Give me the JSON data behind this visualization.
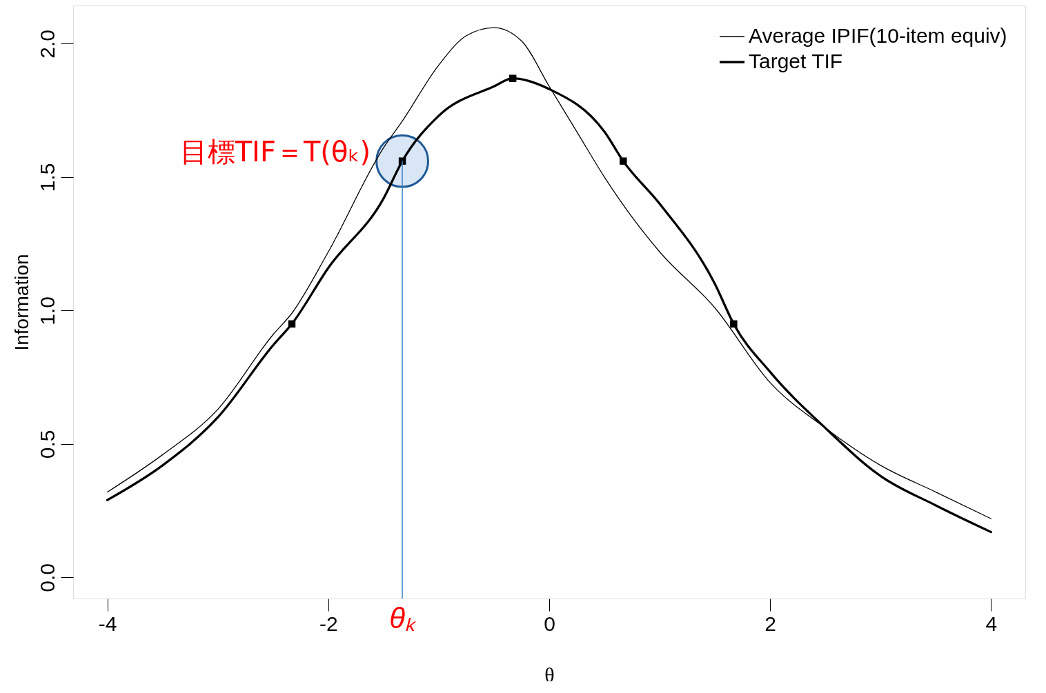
{
  "chart_data": {
    "type": "line",
    "xlabel": "θ",
    "ylabel": "Information",
    "xlim": [
      -4.31,
      4.31
    ],
    "ylim": [
      -0.079,
      2.143
    ],
    "xticks": [
      -4,
      -2,
      0,
      2,
      4
    ],
    "yticks": [
      {
        "value": 0,
        "label": "0.0"
      },
      {
        "value": 0.5,
        "label": "0.5"
      },
      {
        "value": 1,
        "label": "1.0"
      },
      {
        "value": 1.5,
        "label": "1.5"
      },
      {
        "value": 2,
        "label": "2.0"
      }
    ],
    "grid": false,
    "legend": "top right",
    "series": [
      {
        "name": "Average IPIF(10-item equiv)",
        "color": "#000000",
        "x": [
          -4,
          -3.5,
          -3,
          -2.5,
          -2.33,
          -2,
          -1.5,
          -1.33,
          -1,
          -0.75,
          -0.5,
          -0.25,
          0,
          0.25,
          0.5,
          0.75,
          1,
          1.5,
          2,
          2.5,
          3,
          3.5,
          4
        ],
        "values": [
          0.32,
          0.46,
          0.63,
          0.91,
          0.99,
          1.22,
          1.61,
          1.71,
          1.92,
          2.03,
          2.06,
          2.01,
          1.84,
          1.67,
          1.5,
          1.35,
          1.22,
          1.01,
          0.73,
          0.56,
          0.42,
          0.32,
          0.22
        ]
      },
      {
        "name": "Target TIF",
        "color": "#000000",
        "x": [
          -4,
          -3.5,
          -3,
          -2.5,
          -2.33,
          -2,
          -1.5,
          -1.33,
          -1,
          -0.5,
          -0.33,
          0,
          0.5,
          0.67,
          1,
          1.5,
          1.67,
          2,
          2.5,
          3,
          3.5,
          4
        ],
        "values": [
          0.29,
          0.42,
          0.6,
          0.87,
          0.95,
          1.16,
          1.42,
          1.56,
          1.73,
          1.84,
          1.87,
          1.83,
          1.67,
          1.56,
          1.4,
          1.1,
          0.95,
          0.77,
          0.56,
          0.38,
          0.27,
          0.17
        ]
      },
      {
        "type": "scatter",
        "color": "#000000",
        "x": [
          -2.33,
          -1.33,
          -0.33,
          0.67,
          1.67
        ],
        "values": [
          0.95,
          1.56,
          1.87,
          1.56,
          0.95
        ]
      }
    ],
    "ref_lines": [
      {
        "axis": "x",
        "value": -1.33,
        "color": "#3d85c6"
      }
    ],
    "annotations": [
      {
        "text": "目標TIF＝T(θₖ)",
        "x": -1.33,
        "y": 1.56
      },
      "θₖ"
    ]
  }
}
